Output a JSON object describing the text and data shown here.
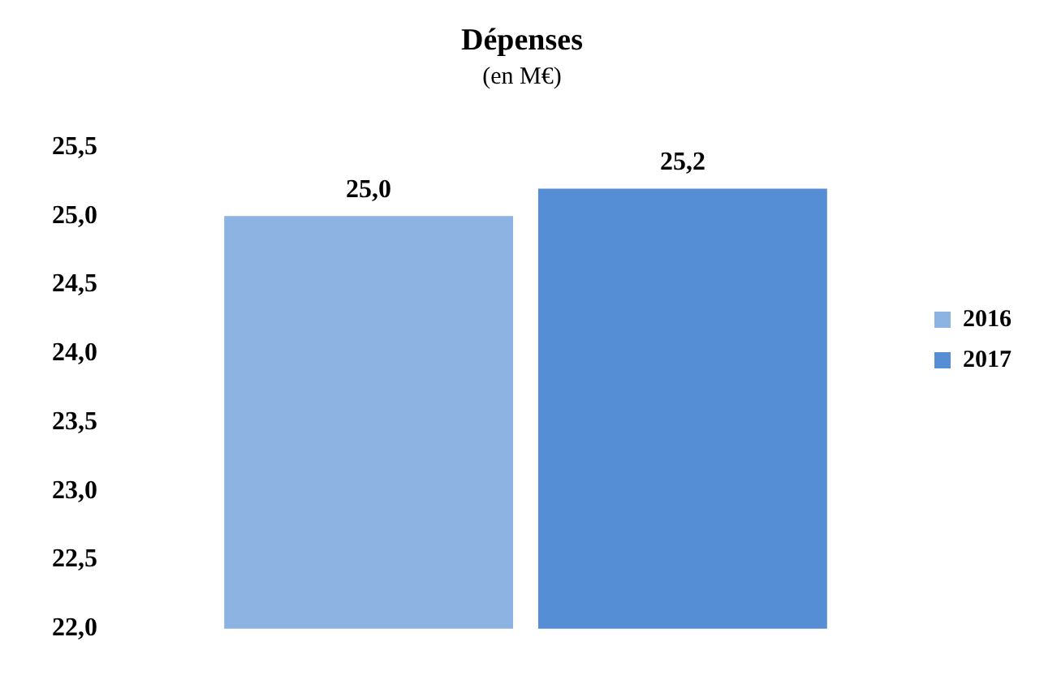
{
  "chart_data": {
    "type": "bar",
    "title": "Dépenses",
    "subtitle": "(en M€)",
    "categories": [
      null
    ],
    "series": [
      {
        "name": "2016",
        "color": "#8db3e2",
        "values": [
          25.0
        ],
        "value_labels": [
          "25,0"
        ]
      },
      {
        "name": "2017",
        "color": "#558ed5",
        "values": [
          25.2
        ],
        "value_labels": [
          "25,2"
        ]
      }
    ],
    "ylim": [
      22.0,
      25.5
    ],
    "yticks": [
      {
        "value": 22.0,
        "label": "22,0"
      },
      {
        "value": 22.5,
        "label": "22,5"
      },
      {
        "value": 23.0,
        "label": "23,0"
      },
      {
        "value": 23.5,
        "label": "23,5"
      },
      {
        "value": 24.0,
        "label": "24,0"
      },
      {
        "value": 24.5,
        "label": "24,5"
      },
      {
        "value": 25.0,
        "label": "25,0"
      },
      {
        "value": 25.5,
        "label": "25,5"
      }
    ],
    "grid": false,
    "legend": "right"
  }
}
